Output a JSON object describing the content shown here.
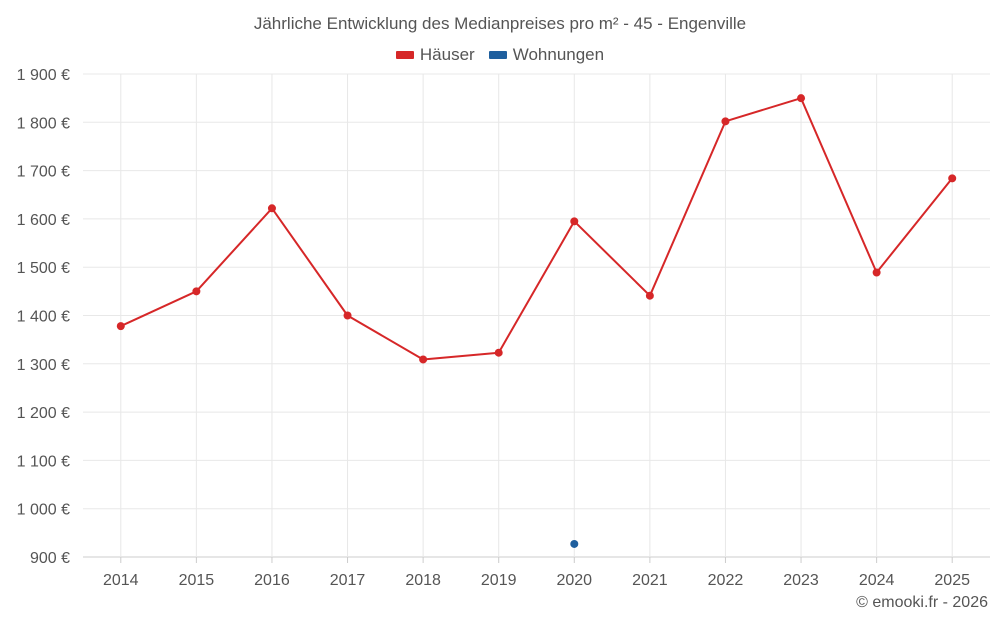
{
  "chart_data": {
    "type": "line",
    "title": "Jährliche Entwicklung des Medianpreises pro m² - 45 - Engenville",
    "xlabel": "",
    "ylabel": "",
    "categories": [
      "2014",
      "2015",
      "2016",
      "2017",
      "2018",
      "2019",
      "2020",
      "2021",
      "2022",
      "2023",
      "2024",
      "2025"
    ],
    "ylim": [
      900,
      1900
    ],
    "yticks": [
      900,
      1000,
      1100,
      1200,
      1300,
      1400,
      1500,
      1600,
      1700,
      1800,
      1900
    ],
    "ytick_labels": [
      "900 €",
      "1 000 €",
      "1 100 €",
      "1 200 €",
      "1 300 €",
      "1 400 €",
      "1 500 €",
      "1 600 €",
      "1 700 €",
      "1 800 €",
      "1 900 €"
    ],
    "grid": true,
    "legend_position": "top-center",
    "series": [
      {
        "name": "Häuser",
        "color": "#d62728",
        "values": [
          1378,
          1450,
          1622,
          1400,
          1309,
          1323,
          1595,
          1441,
          1802,
          1850,
          1489,
          1684
        ]
      },
      {
        "name": "Wohnungen",
        "color": "#1f5f9e",
        "values": [
          null,
          null,
          null,
          null,
          null,
          null,
          927,
          null,
          null,
          null,
          null,
          null
        ]
      }
    ]
  },
  "credit": "© emooki.fr - 2026"
}
